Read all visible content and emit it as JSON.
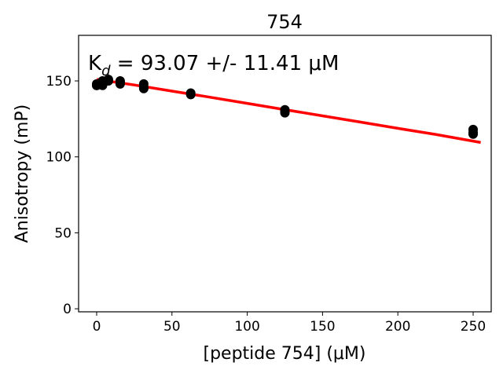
{
  "chart_data": {
    "type": "scatter",
    "title": "754",
    "xlabel": "[peptide 754] (μM)",
    "ylabel": "Anisotropy (mP)",
    "annotation": {
      "prefix": "K",
      "subscript": "d",
      "suffix": " = 93.07 +/- 11.41 μM"
    },
    "xlim": [
      -12,
      262
    ],
    "ylim": [
      -2,
      180
    ],
    "xticks": [
      0,
      50,
      100,
      150,
      200,
      250
    ],
    "yticks": [
      0,
      50,
      100,
      150
    ],
    "grid": false,
    "series": [
      {
        "kind": "points",
        "color": "#000000",
        "x": [
          0,
          0,
          0,
          3.9,
          3.9,
          3.9,
          7.8,
          7.8,
          15.6,
          15.6,
          15.6,
          31.25,
          31.25,
          31.25,
          62.5,
          62.5,
          125,
          125,
          125,
          250,
          250,
          250
        ],
        "y": [
          147,
          148,
          147,
          149,
          147,
          150,
          150,
          151,
          148,
          150,
          149,
          145,
          146,
          148,
          141,
          142,
          130,
          131,
          129,
          118,
          116,
          115
        ]
      },
      {
        "kind": "fit-line",
        "color": "#ff0000",
        "x": [
          0,
          25,
          50,
          75,
          100,
          125,
          150,
          175,
          200,
          225,
          255
        ],
        "y": [
          151,
          147.3,
          143.3,
          139.3,
          135.2,
          131.1,
          127.0,
          122.9,
          118.8,
          114.8,
          109.5
        ]
      }
    ]
  }
}
